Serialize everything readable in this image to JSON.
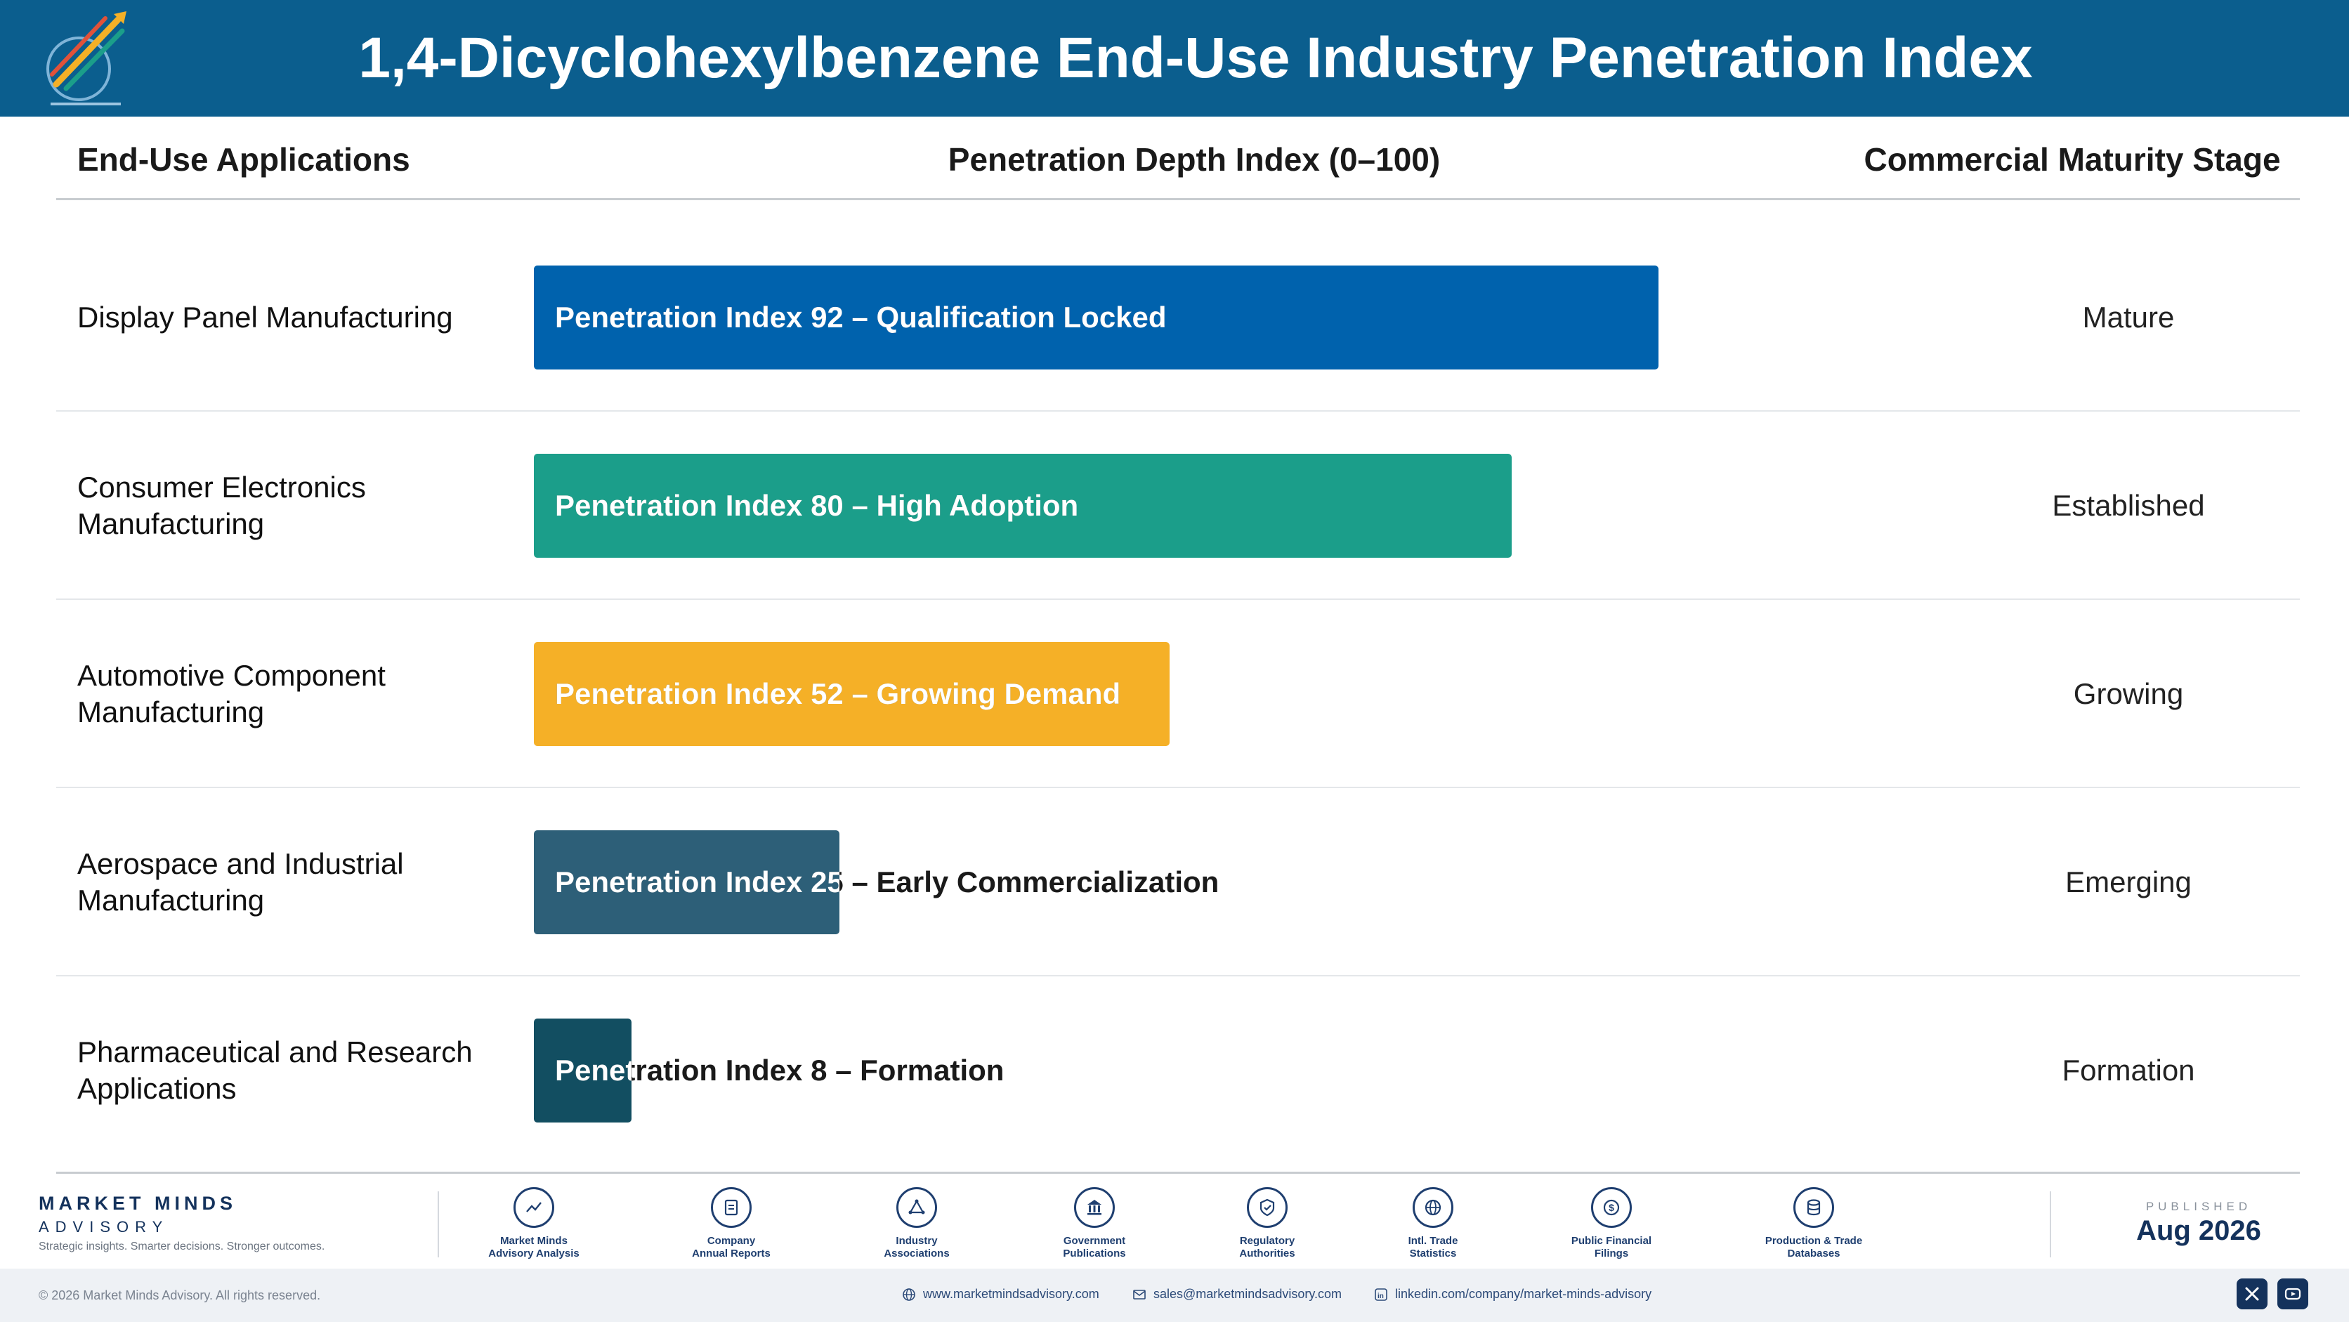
{
  "header": {
    "title": "1,4-Dicyclohexylbenzene End-Use Industry Penetration Index",
    "background_color": "#0b5e8e"
  },
  "columns": {
    "applications": "End-Use Applications",
    "depth": "Penetration Depth Index (0–100)",
    "stage": "Commercial Maturity Stage"
  },
  "chart_data": {
    "type": "bar",
    "orientation": "horizontal",
    "xlim": [
      0,
      100
    ],
    "categories": [
      "Display Panel Manufacturing",
      "Consumer Electronics Manufacturing",
      "Automotive Component Manufacturing",
      "Aerospace and Industrial Manufacturing",
      "Pharmaceutical and Research Applications"
    ],
    "values": [
      92,
      80,
      52,
      25,
      8
    ],
    "bar_labels": [
      "Penetration Index 92 – Qualification Locked",
      "Penetration Index 80 – High Adoption",
      "Penetration Index 52 – Growing Demand",
      "Penetration Index 25 – Early Commercialization",
      "Penetration Index 8 – Formation"
    ],
    "stages": [
      "Mature",
      "Established",
      "Growing",
      "Emerging",
      "Formation"
    ],
    "colors": [
      "#0062ad",
      "#1b9e8a",
      "#f5b027",
      "#2d5f78",
      "#124e61"
    ]
  },
  "footer": {
    "brand_name": "MARKET MINDS",
    "brand_sub": "ADVISORY",
    "tagline": "Strategic insights. Smarter decisions. Stronger outcomes.",
    "sources": [
      {
        "line1": "Market Minds",
        "line2": "Advisory Analysis",
        "icon": "trend-chart-icon"
      },
      {
        "line1": "Company",
        "line2": "Annual Reports",
        "icon": "document-icon"
      },
      {
        "line1": "Industry",
        "line2": "Associations",
        "icon": "network-icon"
      },
      {
        "line1": "Government",
        "line2": "Publications",
        "icon": "government-building-icon"
      },
      {
        "line1": "Regulatory",
        "line2": "Authorities",
        "icon": "shield-check-icon"
      },
      {
        "line1": "Intl. Trade",
        "line2": "Statistics",
        "icon": "globe-icon"
      },
      {
        "line1": "Public Financial",
        "line2": "Filings",
        "icon": "dollar-coin-icon"
      },
      {
        "line1": "Production & Trade",
        "line2": "Databases",
        "icon": "database-icon"
      }
    ],
    "published_label": "PUBLISHED",
    "published_date": "Aug 2026",
    "copyright": "© 2026 Market Minds Advisory. All rights reserved.",
    "website": "www.marketmindsadvisory.com",
    "email": "sales@marketmindsadvisory.com",
    "linkedin": "linkedin.com/company/market-minds-advisory"
  }
}
